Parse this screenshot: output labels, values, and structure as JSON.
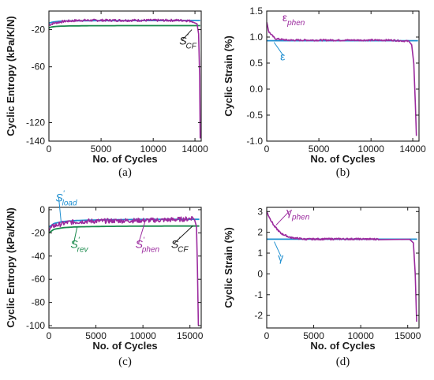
{
  "colors": {
    "magenta": "#9b2a9e",
    "blue": "#1f8fd0",
    "green": "#1a8a4c",
    "axis": "#1a1a1a"
  },
  "chart_data": [
    {
      "panel": "(a)",
      "type": "line",
      "xlabel": "No. of Cycles",
      "ylabel": "Cyclic Entropy (kPa/K/N)",
      "xlim": [
        0,
        14600
      ],
      "ylim": [
        -140,
        0
      ],
      "xticks": [
        0,
        5000,
        10000,
        14000
      ],
      "yticks": [
        -20,
        -60,
        -120,
        -140
      ],
      "yticklabels": [
        "-20",
        "-60",
        "-120",
        "-140"
      ],
      "series": [
        {
          "color": "blue",
          "style": "smooth",
          "x": [
            0,
            300,
            1000,
            2000,
            4000,
            8000,
            12000,
            14500
          ],
          "y": [
            -13,
            -12,
            -11,
            -10.6,
            -10.4,
            -10.3,
            -10.2,
            -10.2
          ]
        },
        {
          "color": "green",
          "style": "smooth",
          "x": [
            0,
            300,
            1000,
            2000,
            4000,
            8000,
            12000,
            14500
          ],
          "y": [
            -18,
            -17,
            -16.3,
            -16,
            -15.8,
            -15.7,
            -15.7,
            -15.7
          ]
        },
        {
          "color": "magenta",
          "style": "noisy",
          "noise": 1.2,
          "x": [
            0,
            500,
            1500,
            3000,
            6000,
            10000,
            13000,
            13800,
            14200,
            14350,
            14450,
            14500
          ],
          "y": [
            -15,
            -13,
            -11,
            -10,
            -10,
            -10,
            -10,
            -11,
            -14,
            -25,
            -70,
            -137
          ]
        }
      ],
      "annotations": [
        {
          "base": "S",
          "sup": "'",
          "sub": "CF",
          "color": "axis",
          "x": 12500,
          "y": -36,
          "arrow_to": [
            13700,
            -20
          ]
        }
      ]
    },
    {
      "panel": "(b)",
      "type": "line",
      "xlabel": "No. of Cycles",
      "ylabel": "Cyclic Strain (%)",
      "xlim": [
        0,
        14600
      ],
      "ylim": [
        -1.0,
        1.5
      ],
      "xticks": [
        0,
        5000,
        10000,
        14000
      ],
      "yticks": [
        1.5,
        1.0,
        0.5,
        0.0,
        -0.5,
        -1.0
      ],
      "yticklabels": [
        "1.5",
        "1.0",
        "0.5",
        "0.0",
        "-0.5",
        "-1.0"
      ],
      "series": [
        {
          "color": "blue",
          "style": "smooth",
          "x": [
            0,
            14500
          ],
          "y": [
            0.93,
            0.93
          ]
        },
        {
          "color": "magenta",
          "style": "noisy",
          "noise": 0.015,
          "x": [
            0,
            200,
            800,
            2000,
            4000,
            8000,
            12000,
            13600,
            13900,
            14100,
            14250,
            14350
          ],
          "y": [
            1.3,
            1.1,
            0.97,
            0.94,
            0.94,
            0.94,
            0.94,
            0.92,
            0.85,
            0.5,
            -0.3,
            -0.9
          ]
        }
      ],
      "annotations": [
        {
          "base": "ε",
          "sup": "",
          "sub": "phen",
          "color": "magenta",
          "x": 1500,
          "y": 1.3
        },
        {
          "base": "ε",
          "sup": "",
          "sub": "",
          "color": "blue",
          "x": 1300,
          "y": 0.55,
          "arrow_to": [
            700,
            0.9
          ]
        }
      ]
    },
    {
      "panel": "(c)",
      "type": "line",
      "xlabel": "No. of Cycles",
      "ylabel": "Cyclic Entropy (kPa/K/N)",
      "xlim": [
        0,
        16200
      ],
      "ylim": [
        -102,
        2
      ],
      "xticks": [
        0,
        5000,
        10000,
        15000
      ],
      "yticks": [
        0,
        -20,
        -40,
        -60,
        -80,
        -100
      ],
      "yticklabels": [
        "0",
        "-20",
        "-40",
        "-60",
        "-80",
        "-100"
      ],
      "series": [
        {
          "color": "blue",
          "style": "smooth",
          "x": [
            0,
            500,
            1500,
            3000,
            6000,
            10000,
            14000,
            16000
          ],
          "y": [
            -15,
            -12,
            -10.2,
            -9.3,
            -8.7,
            -8.4,
            -8.3,
            -8.3
          ]
        },
        {
          "color": "green",
          "style": "smooth",
          "x": [
            0,
            500,
            1500,
            3000,
            6000,
            10000,
            14000,
            16000
          ],
          "y": [
            -20,
            -17,
            -15.5,
            -14.8,
            -14.4,
            -14.2,
            -14.1,
            -14.1
          ]
        },
        {
          "color": "magenta",
          "style": "noisy",
          "noise": 2.0,
          "x": [
            0,
            500,
            2000,
            4000,
            8000,
            12000,
            14800,
            15200,
            15500,
            15700,
            15800,
            15900
          ],
          "y": [
            -17,
            -14,
            -11,
            -10,
            -9.5,
            -9,
            -8,
            -7,
            -9,
            -14,
            -50,
            -100
          ]
        }
      ],
      "annotations": [
        {
          "base": "S",
          "sup": "'",
          "sub": "load",
          "color": "blue",
          "x": 700,
          "y": 7,
          "arrow_to": [
            1300,
            -11
          ]
        },
        {
          "base": "S",
          "sup": "'",
          "sub": "rev",
          "color": "green",
          "x": 2300,
          "y": -33,
          "arrow_to": [
            3000,
            -15
          ]
        },
        {
          "base": "S",
          "sup": "'",
          "sub": "phen",
          "color": "magenta",
          "x": 9200,
          "y": -33,
          "arrow_to": [
            10200,
            -11
          ]
        },
        {
          "base": "S",
          "sup": "'",
          "sub": "CF",
          "color": "axis",
          "x": 13000,
          "y": -33,
          "arrow_to": [
            15300,
            -14
          ]
        }
      ]
    },
    {
      "panel": "(d)",
      "type": "line",
      "xlabel": "No. of Cycles",
      "ylabel": "Cyclic Strain (%)",
      "xlim": [
        0,
        16200
      ],
      "ylim": [
        -2.6,
        3.2
      ],
      "xticks": [
        0,
        5000,
        10000,
        15000
      ],
      "yticks": [
        3,
        2,
        1,
        0,
        -1,
        -2
      ],
      "yticklabels": [
        "3",
        "2",
        "1",
        "0",
        "-1",
        "-2"
      ],
      "series": [
        {
          "color": "blue",
          "style": "smooth",
          "x": [
            0,
            16000
          ],
          "y": [
            1.67,
            1.67
          ]
        },
        {
          "color": "magenta",
          "style": "noisy",
          "noise": 0.04,
          "x": [
            0,
            300,
            800,
            1500,
            2500,
            4000,
            8000,
            12000,
            15200,
            15600,
            15800,
            15950
          ],
          "y": [
            3.0,
            2.7,
            2.3,
            1.95,
            1.75,
            1.67,
            1.68,
            1.67,
            1.65,
            1.5,
            0.0,
            -2.3
          ]
        }
      ],
      "annotations": [
        {
          "base": "γ",
          "sup": "",
          "sub": "phen",
          "color": "magenta",
          "x": 2100,
          "y": 2.8,
          "arrow_to": [
            1000,
            2.35
          ]
        },
        {
          "base": "γ",
          "sup": "",
          "sub": "",
          "color": "blue",
          "x": 1200,
          "y": 0.6,
          "arrow_to": [
            800,
            1.55
          ]
        }
      ]
    }
  ]
}
